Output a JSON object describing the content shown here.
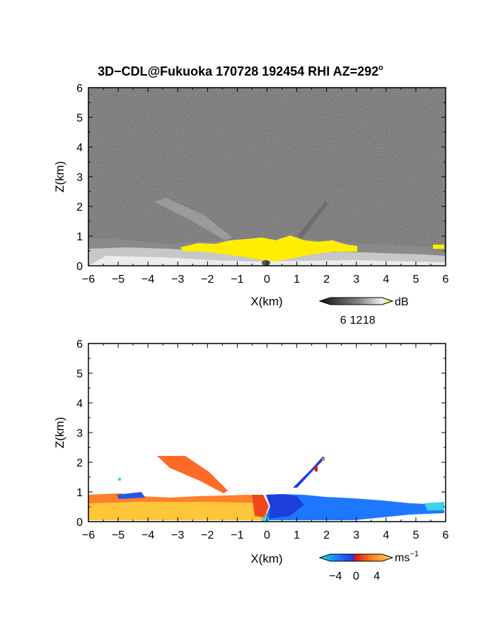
{
  "title": "3D−CDL@Fukuoka 170728 192454 RHI AZ=292",
  "title_sup": "o",
  "chart_data": [
    {
      "type": "heatmap",
      "name": "reflectivity",
      "xlabel": "X(km)",
      "ylabel": "Z(km)",
      "xlim": [
        -6,
        6
      ],
      "ylim": [
        0,
        6
      ],
      "xticks": [
        "−6",
        "−5",
        "−4",
        "−3",
        "−2",
        "−1",
        "0",
        "1",
        "2",
        "3",
        "4",
        "5",
        "6"
      ],
      "yticks": [
        "0",
        "1",
        "2",
        "3",
        "4",
        "5",
        "6"
      ],
      "colorbar": {
        "unit": "dB",
        "ticks": [
          "6",
          "12",
          "18"
        ],
        "range": [
          0,
          24
        ]
      },
      "colors": {
        "background_noise": "#333333",
        "strong": "#ffee00",
        "medium": "#cccccc"
      }
    },
    {
      "type": "heatmap",
      "name": "doppler_velocity",
      "xlabel": "X(km)",
      "ylabel": "Z(km)",
      "xlim": [
        -6,
        6
      ],
      "ylim": [
        0,
        6
      ],
      "xticks": [
        "−6",
        "−5",
        "−4",
        "−3",
        "−2",
        "−1",
        "0",
        "1",
        "2",
        "3",
        "4",
        "5",
        "6"
      ],
      "yticks": [
        "0",
        "1",
        "2",
        "3",
        "4",
        "5",
        "6"
      ],
      "colorbar": {
        "unit": "ms",
        "unit_sup": "−1",
        "ticks": [
          "−4",
          "0",
          "4"
        ],
        "range": [
          -5,
          5
        ]
      },
      "colors": {
        "negative": "#1e60ff",
        "near_zero": "#e8201e",
        "positive": "#ffd24a"
      }
    }
  ]
}
